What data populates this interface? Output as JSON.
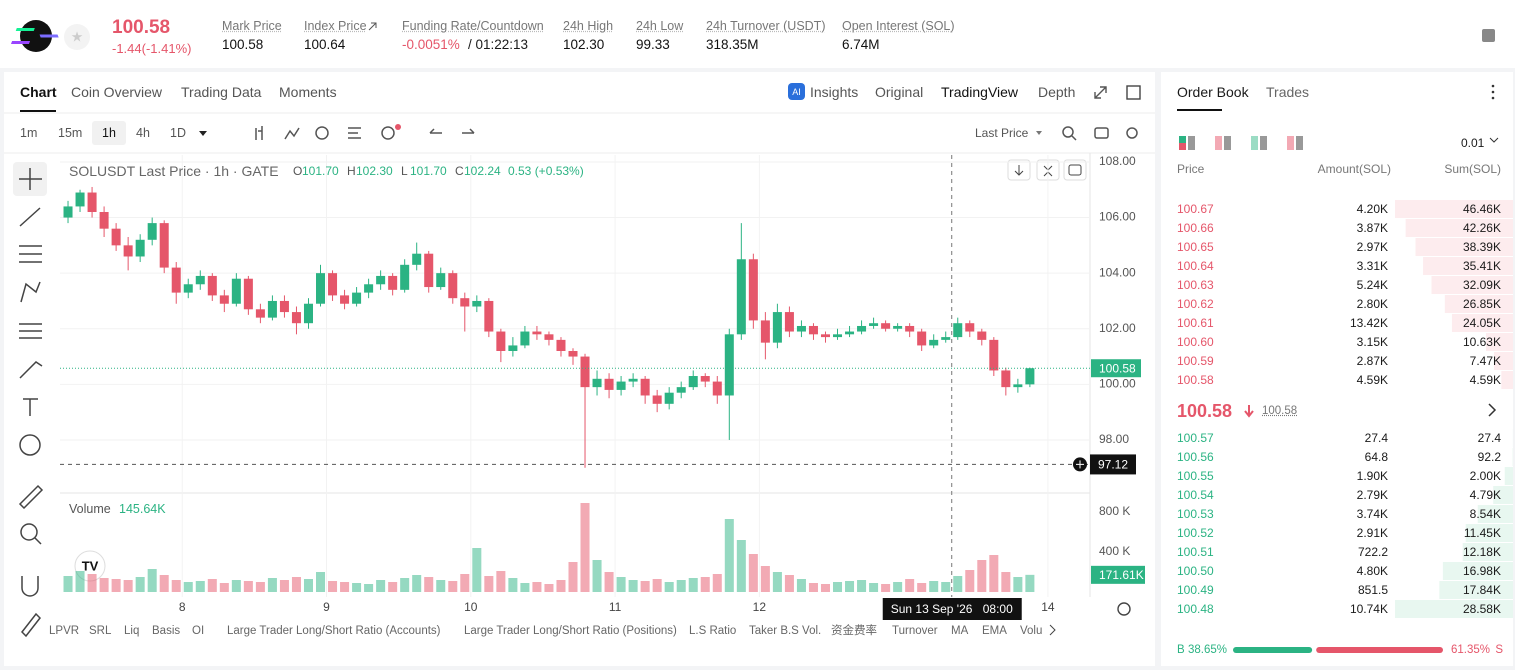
{
  "header": {
    "price": "100.58",
    "change": "-1.44(-1.41%)",
    "stats": [
      {
        "label": "Mark Price",
        "value": "100.58"
      },
      {
        "label": "Index Price",
        "value": "100.64"
      },
      {
        "label": "Funding Rate/Countdown",
        "value": "-0.0051%",
        "extra": "/ 01:22:13"
      },
      {
        "label": "24h High",
        "value": "102.30"
      },
      {
        "label": "24h Low",
        "value": "99.33"
      },
      {
        "label": "24h Turnover (USDT)",
        "value": "318.35M"
      },
      {
        "label": "Open Interest (SOL)",
        "value": "6.74M"
      }
    ]
  },
  "tabs": {
    "left": [
      "Chart",
      "Coin Overview",
      "Trading Data",
      "Moments"
    ],
    "right": [
      "Insights",
      "Original",
      "TradingView",
      "Depth"
    ]
  },
  "toolbar": {
    "intervals": [
      "1m",
      "15m",
      "1h",
      "4h",
      "1D"
    ],
    "price_type": "Last Price"
  },
  "chart_data": {
    "type": "candlestick",
    "title": "SOLUSDT Last Price · 1h · GATE",
    "legend": [
      {
        "key": "O",
        "value": "101.70"
      },
      {
        "key": "H",
        "value": "102.30"
      },
      {
        "key": "L",
        "value": "101.70"
      },
      {
        "key": "C",
        "value": "102.24"
      }
    ],
    "legend_change": "0.53 (+0.53%)",
    "x": [
      -19,
      -17,
      -15,
      -13,
      -11,
      -9,
      -7,
      -5,
      -3,
      -1,
      1,
      3,
      5,
      7,
      9,
      11,
      13,
      15,
      17,
      19,
      21,
      23,
      25,
      27,
      29,
      31,
      33,
      35,
      37,
      39,
      41,
      43,
      45,
      47,
      49,
      51,
      53,
      55,
      57,
      59,
      61,
      63,
      65,
      67,
      69,
      71,
      73,
      75,
      77,
      79,
      81,
      83,
      85,
      87,
      89,
      91,
      93,
      95,
      97,
      99,
      101,
      103,
      105,
      107,
      109,
      111,
      113,
      115,
      117,
      119,
      121,
      123,
      125,
      127,
      129,
      131,
      133,
      135,
      137,
      139,
      141
    ],
    "candles": [
      [
        106.0,
        106.6,
        105.8,
        106.4
      ],
      [
        106.4,
        107.0,
        106.2,
        106.9
      ],
      [
        106.9,
        107.1,
        106.0,
        106.2
      ],
      [
        106.2,
        106.4,
        105.3,
        105.6
      ],
      [
        105.6,
        105.8,
        104.8,
        105.0
      ],
      [
        105.0,
        105.3,
        104.1,
        104.6
      ],
      [
        104.6,
        105.4,
        104.4,
        105.2
      ],
      [
        105.2,
        106.0,
        105.0,
        105.8
      ],
      [
        105.8,
        105.9,
        104.0,
        104.2
      ],
      [
        104.2,
        104.4,
        102.9,
        103.3
      ],
      [
        103.3,
        103.8,
        103.1,
        103.6
      ],
      [
        103.6,
        104.1,
        103.4,
        103.9
      ],
      [
        103.9,
        104.0,
        103.0,
        103.2
      ],
      [
        103.2,
        103.4,
        102.6,
        102.9
      ],
      [
        102.9,
        104.0,
        102.8,
        103.8
      ],
      [
        103.8,
        103.9,
        102.5,
        102.7
      ],
      [
        102.7,
        102.9,
        102.2,
        102.4
      ],
      [
        102.4,
        103.2,
        102.3,
        103.0
      ],
      [
        103.0,
        103.2,
        102.4,
        102.6
      ],
      [
        102.6,
        102.8,
        101.8,
        102.2
      ],
      [
        102.2,
        103.1,
        102.0,
        102.9
      ],
      [
        102.9,
        104.3,
        102.8,
        104.0
      ],
      [
        104.0,
        104.1,
        103.0,
        103.2
      ],
      [
        103.2,
        103.4,
        102.7,
        102.9
      ],
      [
        102.9,
        103.5,
        102.8,
        103.3
      ],
      [
        103.3,
        103.8,
        103.1,
        103.6
      ],
      [
        103.6,
        104.1,
        103.4,
        103.9
      ],
      [
        103.9,
        104.0,
        103.2,
        103.4
      ],
      [
        103.4,
        104.5,
        103.3,
        104.3
      ],
      [
        104.3,
        105.1,
        104.1,
        104.7
      ],
      [
        104.7,
        104.8,
        103.3,
        103.5
      ],
      [
        103.5,
        104.2,
        103.4,
        104.0
      ],
      [
        104.0,
        104.1,
        102.9,
        103.1
      ],
      [
        103.1,
        103.3,
        101.9,
        102.8
      ],
      [
        102.8,
        103.2,
        102.6,
        103.0
      ],
      [
        103.0,
        103.1,
        101.7,
        101.9
      ],
      [
        101.9,
        102.0,
        100.8,
        101.2
      ],
      [
        101.2,
        101.7,
        101.0,
        101.4
      ],
      [
        101.4,
        102.1,
        101.3,
        101.9
      ],
      [
        101.9,
        102.1,
        101.6,
        101.8
      ],
      [
        101.8,
        101.9,
        101.4,
        101.6
      ],
      [
        101.6,
        101.7,
        101.0,
        101.2
      ],
      [
        101.2,
        101.3,
        100.7,
        101.0
      ],
      [
        101.0,
        101.1,
        97.0,
        99.9
      ],
      [
        99.9,
        100.5,
        99.6,
        100.2
      ],
      [
        100.2,
        100.4,
        99.5,
        99.8
      ],
      [
        99.8,
        100.3,
        99.6,
        100.1
      ],
      [
        100.1,
        100.4,
        99.9,
        100.2
      ],
      [
        100.2,
        100.3,
        99.3,
        99.6
      ],
      [
        99.6,
        99.8,
        99.0,
        99.3
      ],
      [
        99.3,
        99.9,
        99.1,
        99.7
      ],
      [
        99.7,
        100.1,
        99.5,
        99.9
      ],
      [
        99.9,
        100.5,
        99.8,
        100.3
      ],
      [
        100.3,
        100.4,
        99.9,
        100.1
      ],
      [
        100.1,
        100.3,
        99.3,
        99.6
      ],
      [
        99.6,
        102.0,
        98.0,
        101.8
      ],
      [
        101.8,
        105.8,
        101.6,
        104.5
      ],
      [
        104.5,
        104.7,
        102.0,
        102.3
      ],
      [
        102.3,
        102.6,
        100.9,
        101.5
      ],
      [
        101.5,
        102.9,
        101.3,
        102.6
      ],
      [
        102.6,
        102.8,
        101.7,
        101.9
      ],
      [
        101.9,
        102.3,
        101.7,
        102.1
      ],
      [
        102.1,
        102.2,
        101.6,
        101.8
      ],
      [
        101.8,
        101.9,
        101.5,
        101.7
      ],
      [
        101.7,
        102.0,
        101.6,
        101.8
      ],
      [
        101.8,
        102.1,
        101.7,
        101.9
      ],
      [
        101.9,
        102.3,
        101.8,
        102.1
      ],
      [
        102.1,
        102.4,
        102.0,
        102.2
      ],
      [
        102.2,
        102.3,
        101.9,
        102.0
      ],
      [
        102.0,
        102.2,
        101.9,
        102.1
      ],
      [
        102.1,
        102.2,
        101.7,
        101.9
      ],
      [
        101.9,
        102.0,
        101.2,
        101.4
      ],
      [
        101.4,
        101.8,
        101.3,
        101.6
      ],
      [
        101.6,
        101.9,
        101.5,
        101.7
      ],
      [
        101.7,
        102.4,
        101.6,
        102.2
      ],
      [
        102.2,
        102.3,
        101.7,
        101.9
      ],
      [
        101.9,
        102.0,
        101.4,
        101.6
      ],
      [
        101.6,
        101.7,
        100.3,
        100.5
      ],
      [
        100.5,
        100.6,
        99.6,
        99.9
      ],
      [
        99.9,
        100.2,
        99.7,
        100.0
      ],
      [
        100.0,
        100.6,
        99.9,
        100.58
      ]
    ],
    "volume": [
      160000,
      210000,
      180000,
      140000,
      130000,
      120000,
      150000,
      230000,
      170000,
      120000,
      100000,
      110000,
      130000,
      90000,
      120000,
      110000,
      100000,
      140000,
      120000,
      150000,
      130000,
      200000,
      110000,
      100000,
      90000,
      80000,
      120000,
      100000,
      140000,
      170000,
      150000,
      120000,
      110000,
      180000,
      440000,
      160000,
      210000,
      140000,
      90000,
      100000,
      80000,
      120000,
      300000,
      890000,
      320000,
      200000,
      150000,
      120000,
      110000,
      130000,
      100000,
      120000,
      140000,
      150000,
      180000,
      730000,
      520000,
      380000,
      260000,
      200000,
      170000,
      130000,
      90000,
      80000,
      100000,
      110000,
      120000,
      90000,
      80000,
      100000,
      130000,
      90000,
      110000,
      100000,
      160000,
      220000,
      320000,
      370000,
      200000,
      150000,
      171610
    ],
    "up_color": "#2bb383",
    "down_color": "#e5566a",
    "xlim": [
      -21,
      151
    ],
    "xticks": [
      {
        "value": 0,
        "label": "8"
      },
      {
        "value": 24,
        "label": "9"
      },
      {
        "value": 48,
        "label": "10"
      },
      {
        "value": 72,
        "label": "11"
      },
      {
        "value": 96,
        "label": "12"
      },
      {
        "value": 144,
        "label": "14"
      }
    ],
    "ylim": [
      96.2,
      108.25
    ],
    "yticks": [
      {
        "value": 98,
        "label": "98.00"
      },
      {
        "value": 100,
        "label": "100.00"
      },
      {
        "value": 102,
        "label": "102.00"
      },
      {
        "value": 104,
        "label": "104.00"
      },
      {
        "value": 106,
        "label": "106.00"
      },
      {
        "value": 108,
        "label": "108.00"
      }
    ],
    "volume_lim": [
      0,
      920000
    ],
    "volume_ticks": [
      {
        "value": 400000,
        "label": "400 K"
      },
      {
        "value": 800000,
        "label": "800 K"
      }
    ],
    "volume_title": "Volume",
    "volume_legend": "145.64K",
    "last_volume_label": "171.61K",
    "last_price": 100.58,
    "crosshair": {
      "x": 128,
      "price": 97.12,
      "date": "Sun 13 Sep '26",
      "time": "08:00"
    }
  },
  "indicators": [
    "LPVR",
    "SRL",
    "Liq",
    "Basis",
    "OI",
    "Large Trader Long/Short Ratio (Accounts)",
    "Large Trader Long/Short Ratio (Positions)",
    "L.S Ratio",
    "Taker B.S Vol.",
    "资金费率",
    "Turnover",
    "MA",
    "EMA",
    "Volu"
  ],
  "order_book": {
    "tabs": [
      "Order Book",
      "Trades"
    ],
    "precision": "0.01",
    "columns": [
      "Price",
      "Amount(SOL)",
      "Sum(SOL)"
    ],
    "asks": [
      [
        "100.67",
        "4.20K",
        "46.46K"
      ],
      [
        "100.66",
        "3.87K",
        "42.26K"
      ],
      [
        "100.65",
        "2.97K",
        "38.39K"
      ],
      [
        "100.64",
        "3.31K",
        "35.41K"
      ],
      [
        "100.63",
        "5.24K",
        "32.09K"
      ],
      [
        "100.62",
        "2.80K",
        "26.85K"
      ],
      [
        "100.61",
        "13.42K",
        "24.05K"
      ],
      [
        "100.60",
        "3.15K",
        "10.63K"
      ],
      [
        "100.59",
        "2.87K",
        "7.47K"
      ],
      [
        "100.58",
        "4.59K",
        "4.59K"
      ]
    ],
    "mid_price": "100.58",
    "mark_price": "100.58",
    "bids": [
      [
        "100.57",
        "27.4",
        "27.4"
      ],
      [
        "100.56",
        "64.8",
        "92.2"
      ],
      [
        "100.55",
        "1.90K",
        "2.00K"
      ],
      [
        "100.54",
        "2.79K",
        "4.79K"
      ],
      [
        "100.53",
        "3.74K",
        "8.54K"
      ],
      [
        "100.52",
        "2.91K",
        "11.45K"
      ],
      [
        "100.51",
        "722.2",
        "12.18K"
      ],
      [
        "100.50",
        "4.80K",
        "16.98K"
      ],
      [
        "100.49",
        "851.5",
        "17.84K"
      ],
      [
        "100.48",
        "10.74K",
        "28.58K"
      ]
    ],
    "buy_label": "B",
    "buy_pct": "38.65%",
    "sell_pct": "61.35%",
    "sell_label": "S"
  }
}
